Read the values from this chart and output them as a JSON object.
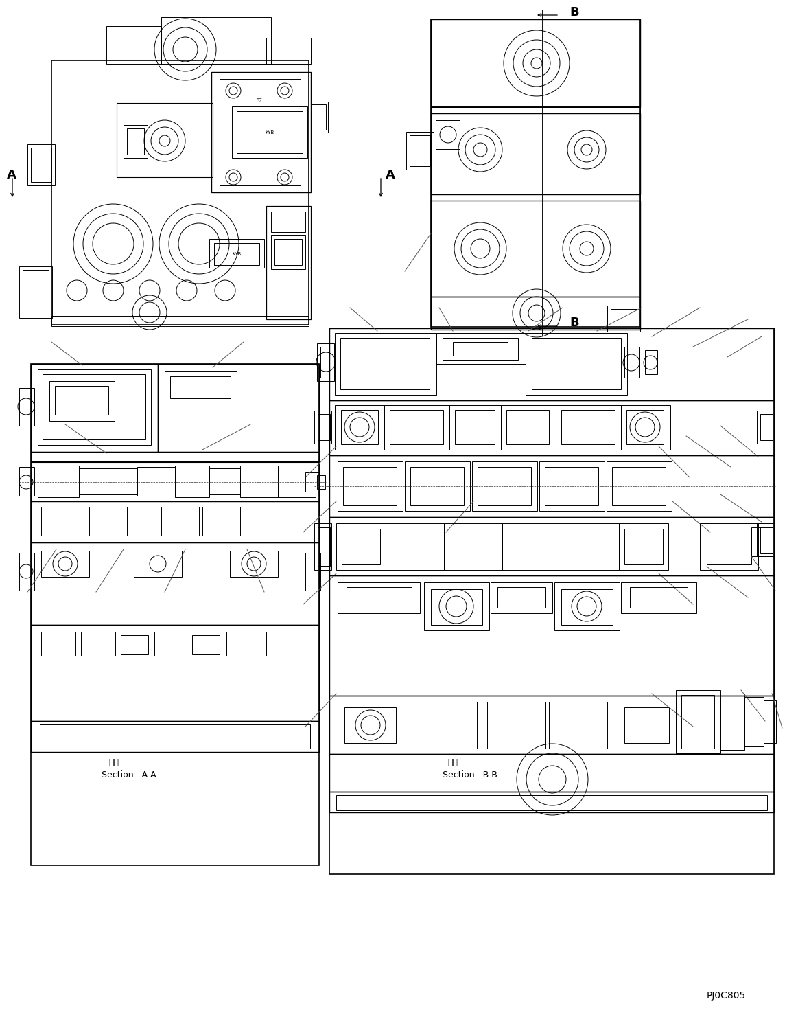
{
  "bg_color": "#ffffff",
  "line_color": "#000000",
  "line_width": 0.7,
  "labels": {
    "section_aa_jp": "断面",
    "section_aa": "Section   A-A",
    "section_bb_jp": "断面",
    "section_bb": "Section   B-B",
    "part_number": "PJ0C805",
    "label_A_left": "A",
    "label_A_right": "A",
    "label_B_top": "B",
    "label_B_bottom": "B"
  },
  "figsize": [
    11.63,
    14.81
  ],
  "dpi": 100
}
